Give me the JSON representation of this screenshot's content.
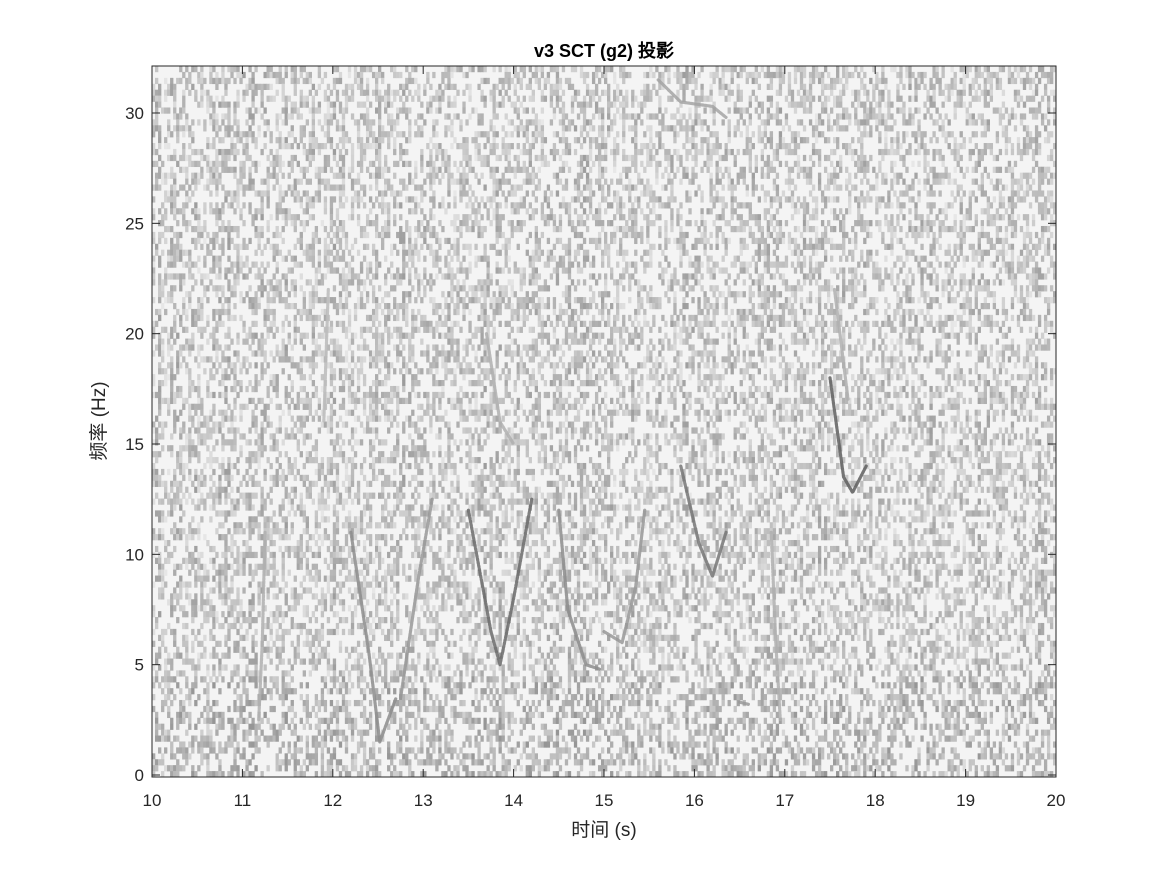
{
  "chart_data": {
    "type": "heatmap",
    "title": "v3 SCT (g2) 投影",
    "xlabel": "时间 (s)",
    "ylabel": "频率 (Hz)",
    "xlim": [
      10,
      20
    ],
    "ylim": [
      0,
      32
    ],
    "x_ticks": [
      "10",
      "11",
      "12",
      "13",
      "14",
      "15",
      "16",
      "17",
      "18",
      "19",
      "20"
    ],
    "y_ticks": [
      "0",
      "5",
      "10",
      "15",
      "20",
      "25",
      "30"
    ],
    "colormap": "gray-reversed",
    "grid": false,
    "features": [
      {
        "points": [
          [
            11.25,
            11.0
          ],
          [
            11.22,
            6.0
          ],
          [
            11.18,
            2.5
          ]
        ],
        "intensity": 0.35
      },
      {
        "points": [
          [
            12.2,
            11.0
          ],
          [
            12.4,
            5.5
          ],
          [
            12.52,
            1.5
          ],
          [
            12.7,
            3.5
          ]
        ],
        "intensity": 0.5
      },
      {
        "points": [
          [
            12.75,
            3.5
          ],
          [
            12.95,
            9.0
          ],
          [
            13.1,
            12.5
          ]
        ],
        "intensity": 0.45
      },
      {
        "points": [
          [
            13.5,
            12.0
          ],
          [
            13.75,
            6.5
          ],
          [
            13.85,
            5.0
          ],
          [
            14.0,
            8.0
          ],
          [
            14.2,
            12.5
          ]
        ],
        "intensity": 0.65
      },
      {
        "points": [
          [
            14.5,
            12.0
          ],
          [
            14.6,
            7.5
          ],
          [
            14.8,
            5.0
          ],
          [
            14.95,
            4.8
          ]
        ],
        "intensity": 0.5
      },
      {
        "points": [
          [
            15.0,
            6.5
          ],
          [
            15.2,
            6.0
          ],
          [
            15.35,
            8.5
          ],
          [
            15.45,
            12.0
          ]
        ],
        "intensity": 0.45
      },
      {
        "points": [
          [
            15.85,
            14.0
          ],
          [
            16.05,
            10.5
          ],
          [
            16.2,
            9.0
          ],
          [
            16.35,
            11.0
          ]
        ],
        "intensity": 0.6
      },
      {
        "points": [
          [
            17.5,
            18.0
          ],
          [
            17.65,
            13.5
          ],
          [
            17.75,
            12.8
          ],
          [
            17.9,
            14.0
          ]
        ],
        "intensity": 0.7
      },
      {
        "points": [
          [
            15.6,
            31.5
          ],
          [
            15.85,
            30.5
          ],
          [
            16.2,
            30.3
          ],
          [
            16.35,
            29.8
          ]
        ],
        "intensity": 0.4
      },
      {
        "points": [
          [
            13.7,
            20.0
          ],
          [
            13.85,
            16.0
          ],
          [
            14.0,
            15.0
          ]
        ],
        "intensity": 0.35
      },
      {
        "points": [
          [
            17.55,
            22.0
          ],
          [
            17.7,
            17.0
          ]
        ],
        "intensity": 0.35
      },
      {
        "points": [
          [
            11.95,
            22.0
          ],
          [
            11.9,
            16.0
          ]
        ],
        "intensity": 0.3
      },
      {
        "points": [
          [
            16.5,
            3.3
          ],
          [
            16.6,
            3.2
          ]
        ],
        "intensity": 0.45
      },
      {
        "points": [
          [
            16.85,
            11.0
          ],
          [
            16.9,
            6.0
          ],
          [
            16.95,
            2.5
          ]
        ],
        "intensity": 0.35
      }
    ]
  }
}
